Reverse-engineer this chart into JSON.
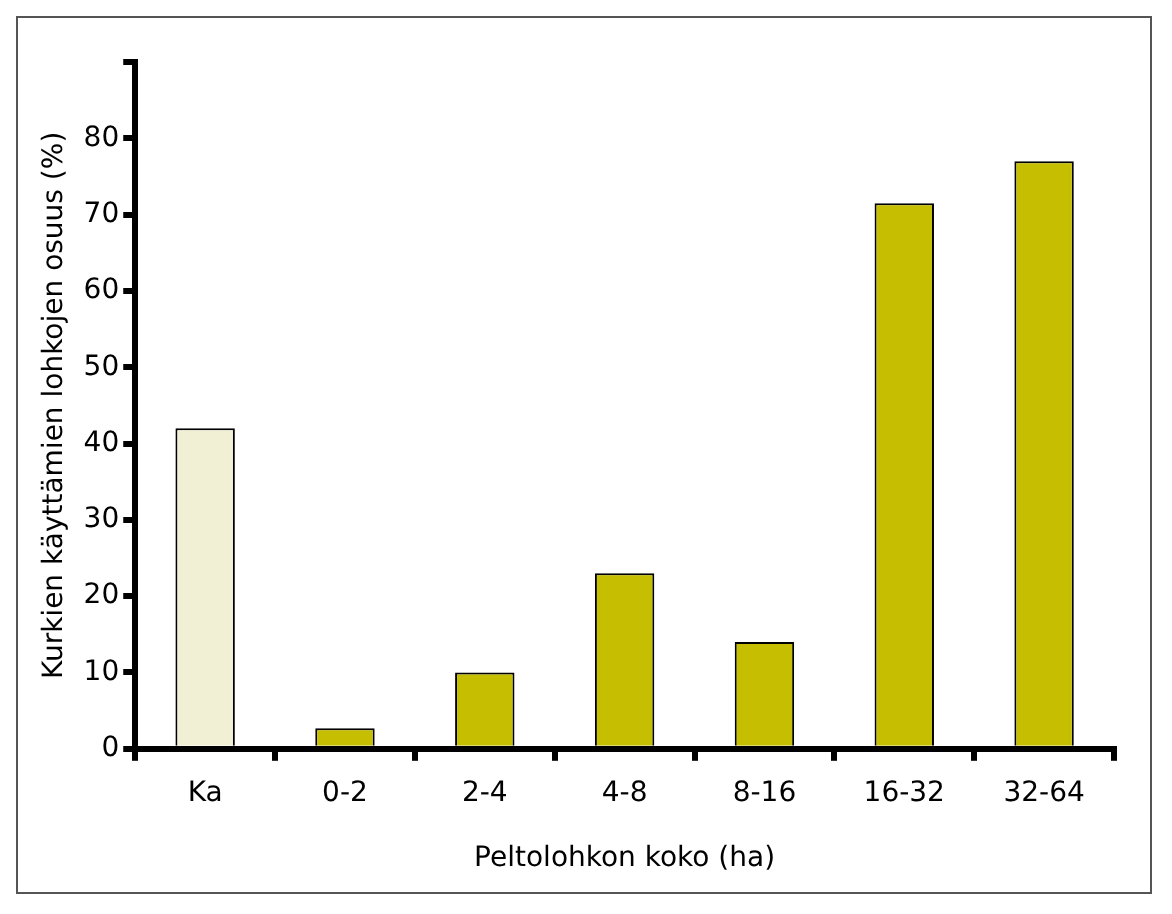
{
  "chart_data": {
    "type": "bar",
    "xlabel": "Peltolohkon koko (ha)",
    "ylabel": "Kurkien käyttämien lohkojen osuus (%)",
    "categories": [
      "Ka",
      "0-2",
      "2-4",
      "4-8",
      "8-16",
      "16-32",
      "32-64"
    ],
    "values": [
      42,
      2.7,
      10,
      23,
      14,
      71.5,
      77
    ],
    "colors": [
      "#f2f0d4",
      "#c6be00",
      "#c6be00",
      "#c6be00",
      "#c6be00",
      "#c6be00",
      "#c6be00"
    ],
    "ylim": [
      0,
      90
    ],
    "yticks": [
      0,
      10,
      20,
      30,
      40,
      50,
      60,
      70,
      80,
      {
        "value": 90,
        "label": null
      }
    ],
    "grid": false,
    "legend": false
  }
}
